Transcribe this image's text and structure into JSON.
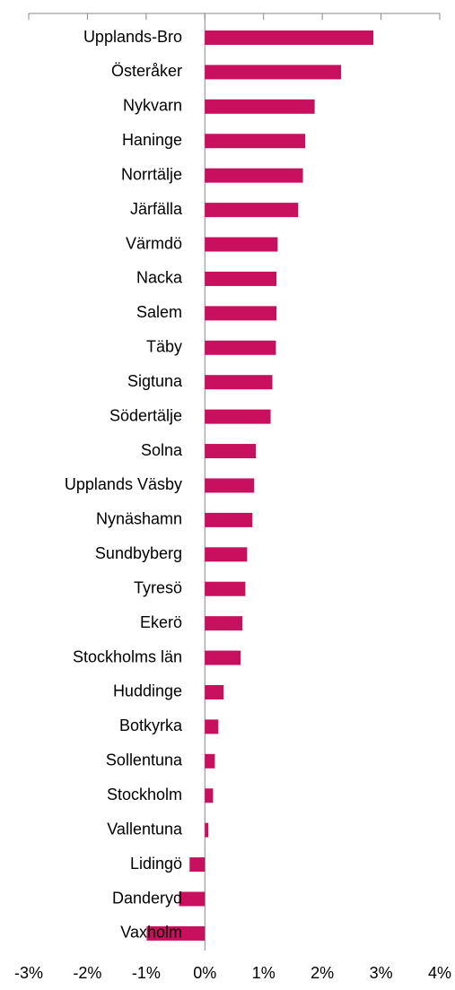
{
  "chart_data": {
    "type": "barh",
    "color": "#c8105f",
    "categories": [
      "Upplands-Bro",
      "Österåker",
      "Nykvarn",
      "Haninge",
      "Norrtälje",
      "Järfälla",
      "Värmdö",
      "Nacka",
      "Salem",
      "Täby",
      "Sigtuna",
      "Södertälje",
      "Solna",
      "Upplands Väsby",
      "Nynäshamn",
      "Sundbyberg",
      "Tyresö",
      "Ekerö",
      "Stockholms län",
      "Huddinge",
      "Botkyrka",
      "Sollentuna",
      "Stockholm",
      "Vallentuna",
      "Lidingö",
      "Danderyd",
      "Vaxholm"
    ],
    "values": [
      2.87,
      2.32,
      1.87,
      1.71,
      1.67,
      1.59,
      1.24,
      1.22,
      1.22,
      1.21,
      1.15,
      1.12,
      0.87,
      0.84,
      0.81,
      0.72,
      0.69,
      0.64,
      0.61,
      0.32,
      0.23,
      0.17,
      0.14,
      0.06,
      -0.26,
      -0.44,
      -0.99
    ],
    "xlim": [
      -3,
      4
    ],
    "xticks": [
      {
        "value": -3,
        "label": "-3%"
      },
      {
        "value": -2,
        "label": "-2%"
      },
      {
        "value": -1,
        "label": "-1%"
      },
      {
        "value": 0,
        "label": "0%"
      },
      {
        "value": 1,
        "label": "1%"
      },
      {
        "value": 2,
        "label": "2%"
      },
      {
        "value": 3,
        "label": "3%"
      },
      {
        "value": 4,
        "label": "4%"
      }
    ]
  }
}
